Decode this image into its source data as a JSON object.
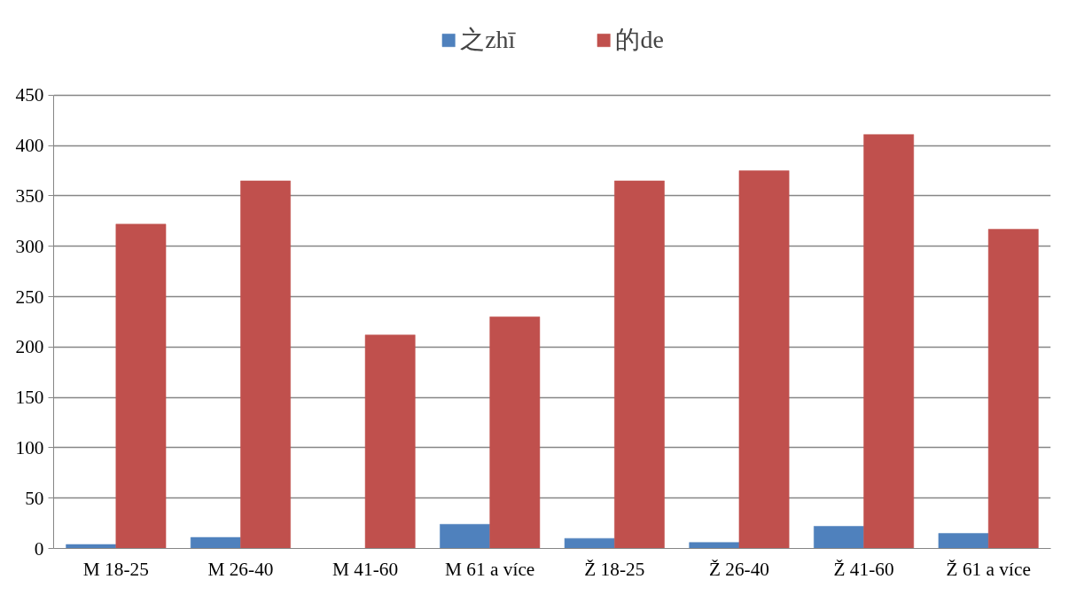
{
  "chart_data": {
    "type": "bar",
    "categories": [
      "M 18-25",
      "M 26-40",
      "M 41-60",
      "M 61 a více",
      "Ž 18-25",
      "Ž 26-40",
      "Ž 41-60",
      "Ž 61 a více"
    ],
    "series": [
      {
        "name": "之zhī",
        "color": "#4f81bd",
        "values": [
          4,
          11,
          0,
          24,
          10,
          6,
          22,
          15
        ]
      },
      {
        "name": "的de",
        "color": "#c0504d",
        "values": [
          322,
          365,
          212,
          230,
          365,
          375,
          411,
          317
        ]
      }
    ],
    "ylim": [
      0,
      450
    ],
    "yticks": [
      0,
      50,
      100,
      150,
      200,
      250,
      300,
      350,
      400,
      450
    ],
    "grid": "y",
    "legend": "top"
  }
}
